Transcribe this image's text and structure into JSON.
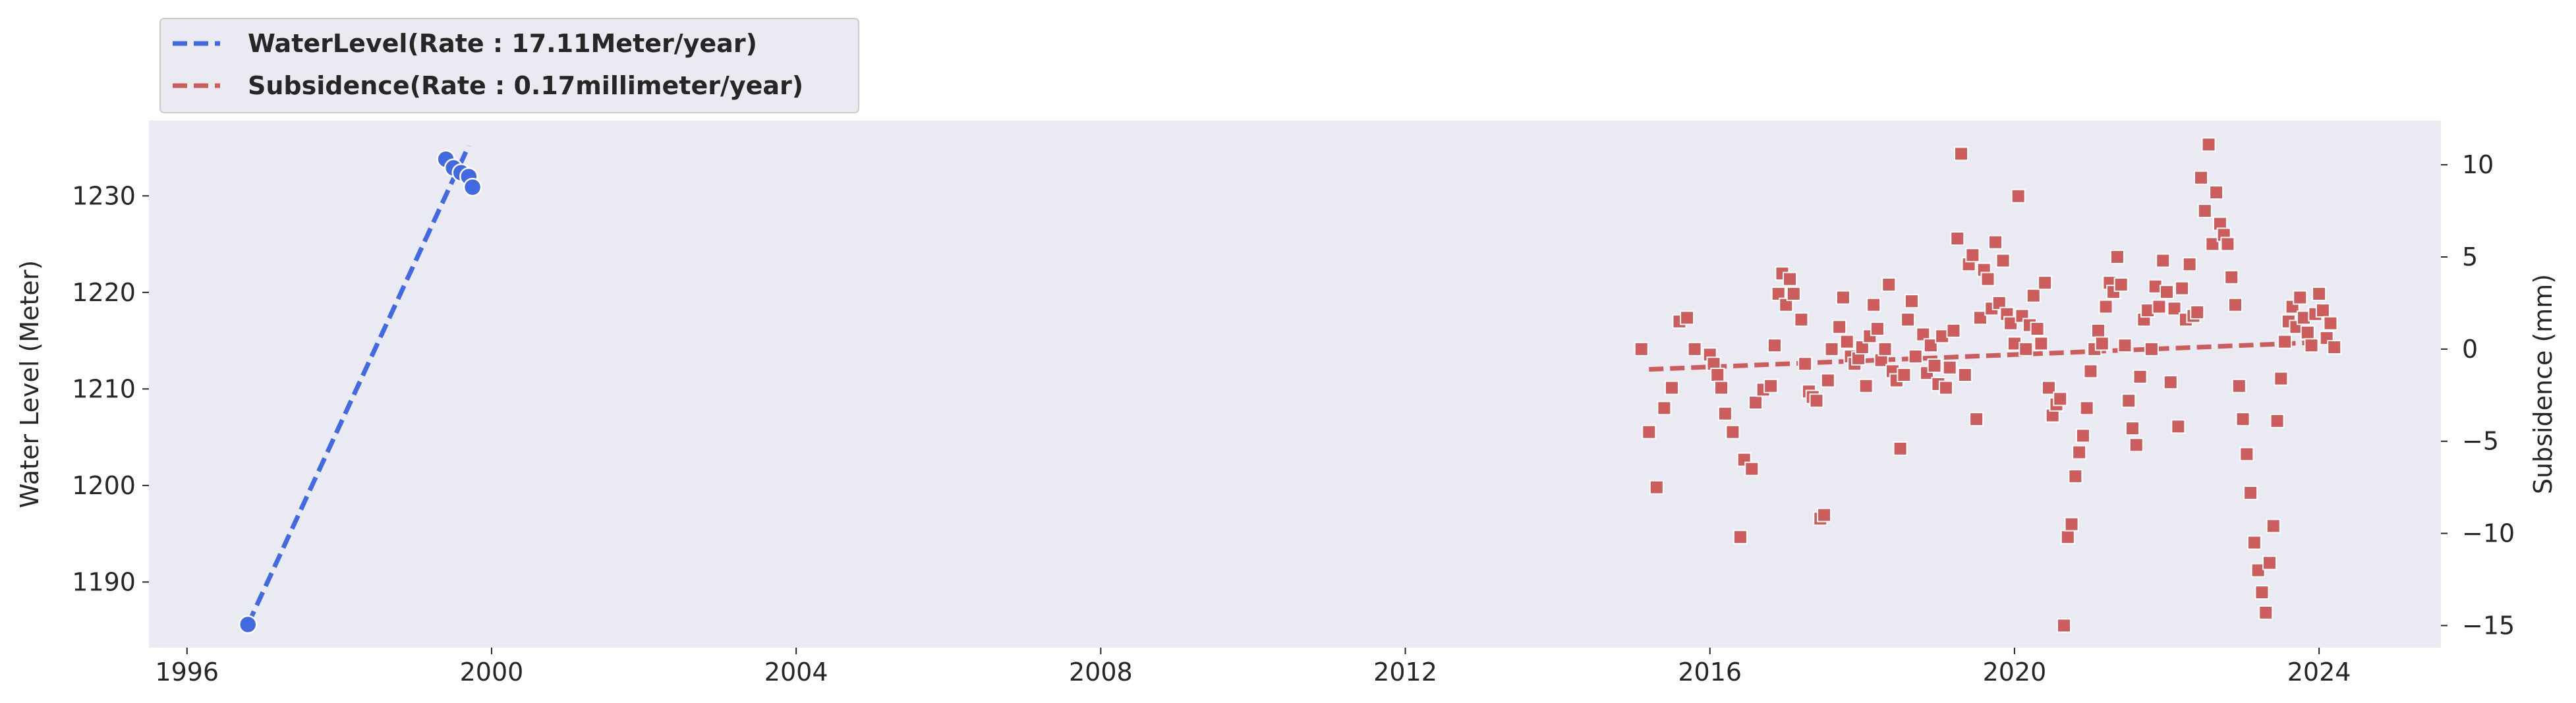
{
  "chart_data": {
    "type": "scatter",
    "legend": {
      "placement": "top-left, outside above plot",
      "entries": [
        {
          "label": "WaterLevel(Rate : 17.11Meter/year)",
          "color": "#4169E1",
          "style": "dashed line"
        },
        {
          "label": "Subsidence(Rate : 0.17millimeter/year)",
          "color": "#CD5C5C",
          "style": "dashed line"
        }
      ]
    },
    "xlabel": "",
    "ylabel_left": "Water Level (Meter)",
    "ylabel_right": "Subsidence (mm)",
    "xlim": [
      1995.5,
      2025.6
    ],
    "ylim_left": [
      1183.2,
      1237.8
    ],
    "ylim_right": [
      -16.2,
      12.4
    ],
    "x_ticks": [
      1996,
      2000,
      2004,
      2008,
      2012,
      2016,
      2020,
      2024
    ],
    "x_tick_labels": [
      "1996",
      "2000",
      "2004",
      "2008",
      "2012",
      "2016",
      "2020",
      "2024"
    ],
    "y_left_ticks": [
      1190,
      1200,
      1210,
      1220,
      1230
    ],
    "y_left_tick_labels": [
      "1190",
      "1200",
      "1210",
      "1220",
      "1230"
    ],
    "y_right_ticks": [
      -15,
      -10,
      -5,
      0,
      5,
      10
    ],
    "y_right_tick_labels": [
      "−15",
      "−10",
      "−5",
      "0",
      "5",
      "10"
    ],
    "grid": false,
    "background": "#EAEAF2",
    "colors": {
      "water": "#4169E1",
      "subsidence": "#CD5C5C"
    },
    "series": [
      {
        "axis": "left",
        "marker": "circle",
        "color": "#4169E1",
        "points": [
          [
            1996.8,
            1185.6
          ],
          [
            1999.4,
            1233.8
          ],
          [
            1999.5,
            1232.9
          ],
          [
            1999.6,
            1232.4
          ],
          [
            1999.7,
            1232.0
          ],
          [
            1999.75,
            1230.9
          ]
        ]
      },
      {
        "axis": "left",
        "type": "trend",
        "style": "dashed",
        "color": "#4169E1",
        "points": [
          [
            1996.8,
            1185.6
          ],
          [
            1999.7,
            1235.2
          ]
        ]
      },
      {
        "axis": "right",
        "marker": "square",
        "color": "#CD5C5C",
        "points": [
          [
            2015.1,
            0.0
          ],
          [
            2015.2,
            -4.5
          ],
          [
            2015.3,
            -7.5
          ],
          [
            2015.4,
            -3.2
          ],
          [
            2015.5,
            -2.1
          ],
          [
            2015.6,
            1.5
          ],
          [
            2015.7,
            1.7
          ],
          [
            2015.8,
            0.0
          ],
          [
            2016.0,
            -0.3
          ],
          [
            2016.05,
            -0.8
          ],
          [
            2016.1,
            -1.4
          ],
          [
            2016.15,
            -2.1
          ],
          [
            2016.2,
            -3.5
          ],
          [
            2016.3,
            -4.5
          ],
          [
            2016.4,
            -10.2
          ],
          [
            2016.45,
            -6.0
          ],
          [
            2016.55,
            -6.5
          ],
          [
            2016.6,
            -2.9
          ],
          [
            2016.7,
            -2.2
          ],
          [
            2016.8,
            -2.0
          ],
          [
            2016.85,
            0.2
          ],
          [
            2016.9,
            3.0
          ],
          [
            2016.95,
            4.1
          ],
          [
            2017.0,
            2.4
          ],
          [
            2017.05,
            3.8
          ],
          [
            2017.1,
            3.0
          ],
          [
            2017.2,
            1.6
          ],
          [
            2017.25,
            -0.8
          ],
          [
            2017.3,
            -2.3
          ],
          [
            2017.35,
            -2.6
          ],
          [
            2017.4,
            -2.8
          ],
          [
            2017.45,
            -9.2
          ],
          [
            2017.5,
            -9.0
          ],
          [
            2017.55,
            -1.7
          ],
          [
            2017.6,
            0.0
          ],
          [
            2017.7,
            1.2
          ],
          [
            2017.75,
            2.8
          ],
          [
            2017.8,
            0.4
          ],
          [
            2017.85,
            -0.4
          ],
          [
            2017.9,
            -0.8
          ],
          [
            2017.95,
            -0.5
          ],
          [
            2018.0,
            0.1
          ],
          [
            2018.05,
            -2.0
          ],
          [
            2018.1,
            0.7
          ],
          [
            2018.15,
            2.4
          ],
          [
            2018.2,
            1.1
          ],
          [
            2018.25,
            -0.6
          ],
          [
            2018.3,
            0.0
          ],
          [
            2018.35,
            3.5
          ],
          [
            2018.4,
            -1.2
          ],
          [
            2018.45,
            -1.7
          ],
          [
            2018.5,
            -5.4
          ],
          [
            2018.55,
            -1.4
          ],
          [
            2018.6,
            1.6
          ],
          [
            2018.65,
            2.6
          ],
          [
            2018.7,
            -0.4
          ],
          [
            2018.8,
            0.8
          ],
          [
            2018.85,
            -1.3
          ],
          [
            2018.9,
            0.2
          ],
          [
            2018.95,
            -0.9
          ],
          [
            2019.0,
            -1.9
          ],
          [
            2019.05,
            0.7
          ],
          [
            2019.1,
            -2.1
          ],
          [
            2019.15,
            -1.0
          ],
          [
            2019.2,
            1.0
          ],
          [
            2019.25,
            6.0
          ],
          [
            2019.3,
            10.6
          ],
          [
            2019.35,
            -1.4
          ],
          [
            2019.4,
            4.6
          ],
          [
            2019.45,
            5.1
          ],
          [
            2019.5,
            -3.8
          ],
          [
            2019.55,
            1.7
          ],
          [
            2019.6,
            4.3
          ],
          [
            2019.65,
            3.8
          ],
          [
            2019.7,
            2.2
          ],
          [
            2019.75,
            5.8
          ],
          [
            2019.8,
            2.5
          ],
          [
            2019.85,
            4.8
          ],
          [
            2019.9,
            1.9
          ],
          [
            2019.95,
            1.4
          ],
          [
            2020.0,
            0.3
          ],
          [
            2020.05,
            8.3
          ],
          [
            2020.1,
            1.8
          ],
          [
            2020.15,
            0.0
          ],
          [
            2020.2,
            1.3
          ],
          [
            2020.25,
            2.9
          ],
          [
            2020.3,
            1.1
          ],
          [
            2020.35,
            0.3
          ],
          [
            2020.4,
            3.6
          ],
          [
            2020.45,
            -2.1
          ],
          [
            2020.5,
            -3.6
          ],
          [
            2020.55,
            -3.0
          ],
          [
            2020.6,
            -2.7
          ],
          [
            2020.65,
            -15.0
          ],
          [
            2020.7,
            -10.2
          ],
          [
            2020.75,
            -9.5
          ],
          [
            2020.8,
            -6.9
          ],
          [
            2020.85,
            -5.6
          ],
          [
            2020.9,
            -4.7
          ],
          [
            2020.95,
            -3.2
          ],
          [
            2021.0,
            -1.2
          ],
          [
            2021.05,
            0.0
          ],
          [
            2021.1,
            1.0
          ],
          [
            2021.15,
            0.3
          ],
          [
            2021.2,
            2.3
          ],
          [
            2021.25,
            3.6
          ],
          [
            2021.3,
            3.1
          ],
          [
            2021.35,
            5.0
          ],
          [
            2021.4,
            3.5
          ],
          [
            2021.45,
            0.2
          ],
          [
            2021.5,
            -2.8
          ],
          [
            2021.55,
            -4.3
          ],
          [
            2021.6,
            -5.2
          ],
          [
            2021.65,
            -1.5
          ],
          [
            2021.7,
            1.6
          ],
          [
            2021.75,
            2.1
          ],
          [
            2021.8,
            0.0
          ],
          [
            2021.85,
            3.4
          ],
          [
            2021.9,
            2.3
          ],
          [
            2021.95,
            4.8
          ],
          [
            2022.0,
            3.1
          ],
          [
            2022.05,
            -1.8
          ],
          [
            2022.1,
            2.2
          ],
          [
            2022.15,
            -4.2
          ],
          [
            2022.2,
            3.3
          ],
          [
            2022.25,
            1.6
          ],
          [
            2022.3,
            4.6
          ],
          [
            2022.35,
            1.8
          ],
          [
            2022.4,
            2.0
          ],
          [
            2022.45,
            9.3
          ],
          [
            2022.5,
            7.5
          ],
          [
            2022.55,
            11.1
          ],
          [
            2022.6,
            5.7
          ],
          [
            2022.65,
            8.5
          ],
          [
            2022.7,
            6.8
          ],
          [
            2022.75,
            6.2
          ],
          [
            2022.8,
            5.7
          ],
          [
            2022.85,
            3.9
          ],
          [
            2022.9,
            2.4
          ],
          [
            2022.95,
            -2.0
          ],
          [
            2023.0,
            -3.8
          ],
          [
            2023.05,
            -5.7
          ],
          [
            2023.1,
            -7.8
          ],
          [
            2023.15,
            -10.5
          ],
          [
            2023.2,
            -12.0
          ],
          [
            2023.25,
            -13.2
          ],
          [
            2023.3,
            -14.3
          ],
          [
            2023.35,
            -11.6
          ],
          [
            2023.4,
            -9.6
          ],
          [
            2023.45,
            -3.9
          ],
          [
            2023.5,
            -1.6
          ],
          [
            2023.55,
            0.4
          ],
          [
            2023.6,
            1.5
          ],
          [
            2023.65,
            2.3
          ],
          [
            2023.7,
            1.2
          ],
          [
            2023.75,
            2.8
          ],
          [
            2023.8,
            1.7
          ],
          [
            2023.85,
            0.9
          ],
          [
            2023.9,
            0.2
          ],
          [
            2023.95,
            1.9
          ],
          [
            2024.0,
            3.0
          ],
          [
            2024.05,
            2.1
          ],
          [
            2024.1,
            0.6
          ],
          [
            2024.15,
            1.4
          ],
          [
            2024.2,
            0.1
          ]
        ]
      },
      {
        "axis": "right",
        "type": "trend",
        "style": "dashed",
        "color": "#CD5C5C",
        "points": [
          [
            2015.2,
            -1.1
          ],
          [
            2024.2,
            0.4
          ]
        ]
      }
    ]
  }
}
